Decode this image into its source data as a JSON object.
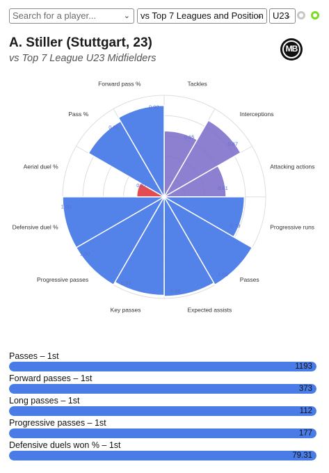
{
  "controls": {
    "player_search_placeholder": "Search for a player...",
    "comparison_select": "vs Top 7 Leagues and Position",
    "age_select": "U23",
    "chevron_icon": "chevron-down-icon",
    "toggle_off_icon": "radio-off-icon",
    "toggle_on_icon": "radio-on-icon"
  },
  "header": {
    "title": "A. Stiller (Stuttgart, 23)",
    "subtitle": "vs Top 7 League U23 Midfielders",
    "logo_text": "MB"
  },
  "colors": {
    "purple": "#7a6ac9",
    "blue": "#4a7ce8",
    "red": "#e2424a",
    "grid": "#dddddd"
  },
  "chart_data": {
    "type": "polar-bar",
    "rlim": [
      0,
      1
    ],
    "grid": true,
    "categories": [
      "Tackles",
      "Interceptions",
      "Attacking actions",
      "Progressive runs",
      "Passes",
      "Expected assists",
      "Key passes",
      "Progressive passes",
      "Defensive duel %",
      "Aerial duel %",
      "Pass %",
      "Forward pass %"
    ],
    "values": [
      0.65,
      0.87,
      0.61,
      0.79,
      1.0,
      0.98,
      0.97,
      1.0,
      1.0,
      0.27,
      0.86,
      0.9
    ],
    "labels": [
      "0.65",
      "0.87",
      "0.61",
      "0.79",
      "1.00",
      "0.98",
      "0.97",
      "1.00",
      "1.00",
      "0.27",
      "0.86",
      "0.90"
    ]
  },
  "stats": [
    {
      "label": "Passes – 1st",
      "value": "1193",
      "fill": 1.0
    },
    {
      "label": "Forward passes – 1st",
      "value": "373",
      "fill": 1.0
    },
    {
      "label": "Long passes – 1st",
      "value": "112",
      "fill": 1.0
    },
    {
      "label": "Progressive passes – 1st",
      "value": "177",
      "fill": 1.0
    },
    {
      "label": "Defensive duels won % – 1st",
      "value": "79.31",
      "fill": 1.0
    }
  ]
}
